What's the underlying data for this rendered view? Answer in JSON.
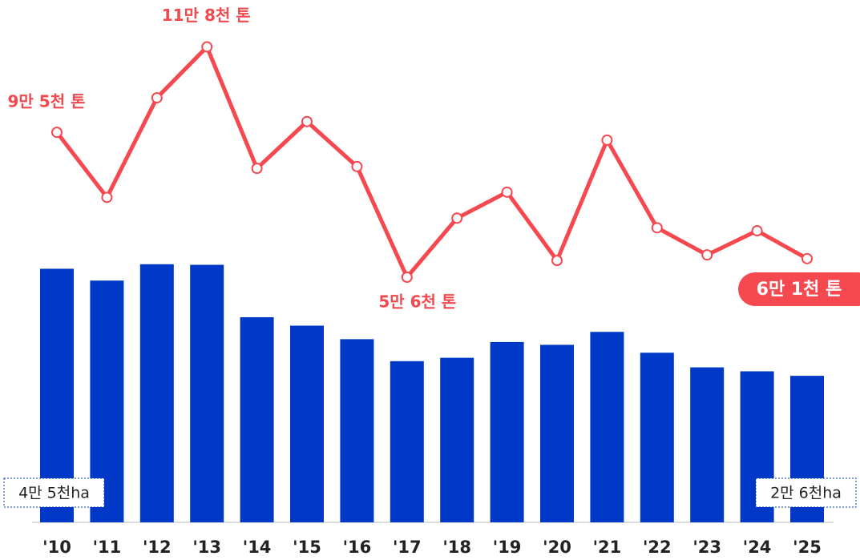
{
  "chart_data": {
    "type": "bar",
    "categories": [
      "'10",
      "'11",
      "'12",
      "'13",
      "'14",
      "'15",
      "'16",
      "'17",
      "'18",
      "'19",
      "'20",
      "'21",
      "'22",
      "'23",
      "'24",
      "'25"
    ],
    "series": [
      {
        "type": "bar",
        "color": "#0038c7",
        "values": [
          45000,
          42900,
          45800,
          45700,
          36400,
          34900,
          32500,
          28600,
          29200,
          32000,
          31500,
          33800,
          30100,
          27500,
          26800,
          26000
        ],
        "value_labels": [
          "4만 5천ha",
          null,
          null,
          null,
          null,
          null,
          null,
          null,
          null,
          null,
          null,
          null,
          null,
          null,
          null,
          "2만 6천ha"
        ]
      },
      {
        "type": "line",
        "axis": "y2",
        "color": "#f5484f",
        "values": [
          95000,
          77500,
          104300,
          118000,
          85300,
          97900,
          85800,
          56000,
          71900,
          78900,
          60500,
          92900,
          69300,
          62000,
          68500,
          61000
        ],
        "value_labels": [
          "9만 5천 톤",
          null,
          null,
          "11만 8천 톤",
          null,
          null,
          null,
          "5만 6천 톤",
          null,
          null,
          null,
          null,
          null,
          null,
          null,
          "6만 1천 톤"
        ]
      }
    ],
    "ylim": [
      0,
      87000
    ],
    "y2lim": [
      -10000,
      122000
    ]
  }
}
